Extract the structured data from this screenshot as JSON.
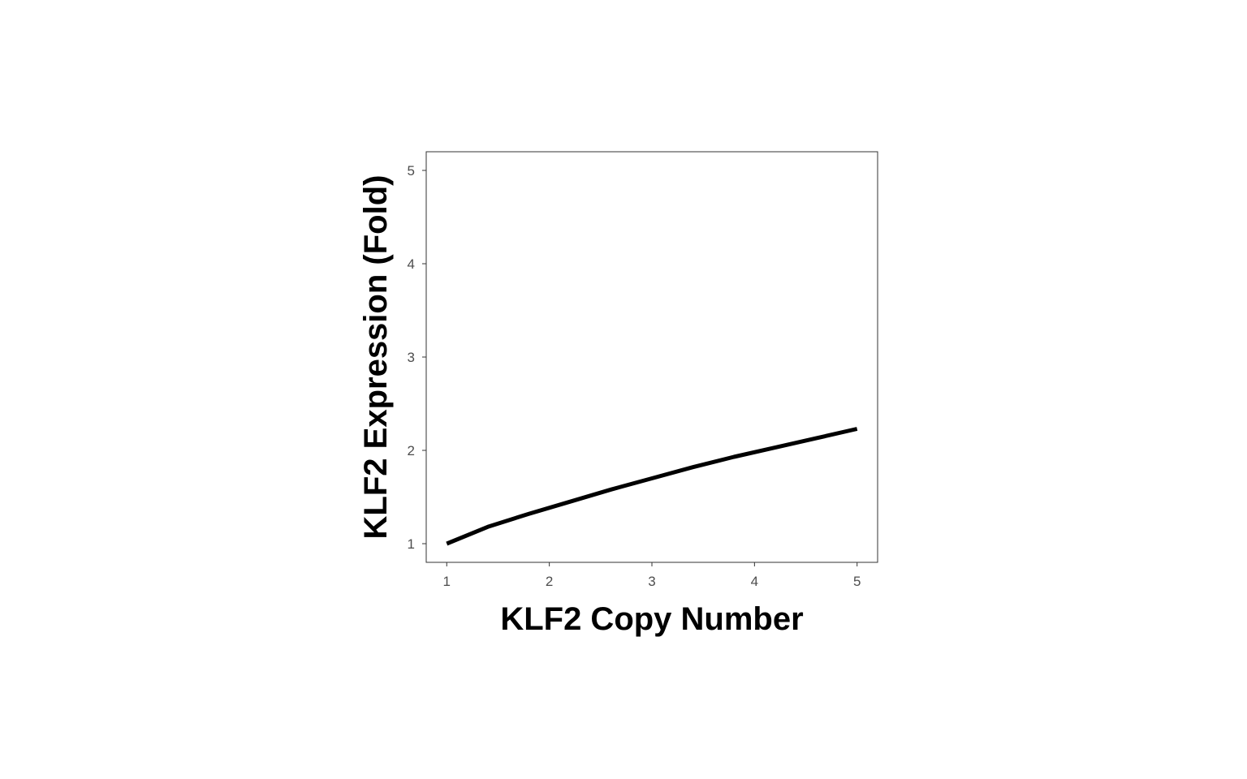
{
  "chart_data": {
    "type": "line",
    "title": "",
    "xlabel": "KLF2 Copy Number",
    "ylabel": "KLF2 Expression (Fold)",
    "xlim": [
      0.8,
      5.2
    ],
    "ylim": [
      0.8,
      5.2
    ],
    "x_ticks": [
      "1",
      "2",
      "3",
      "4",
      "5"
    ],
    "y_ticks": [
      "1",
      "2",
      "3",
      "4",
      "5"
    ],
    "grid": false,
    "legend": "none",
    "series": [
      {
        "color": "#000000",
        "x": [
          1.0,
          1.4,
          1.8,
          2.2,
          2.6,
          3.0,
          3.4,
          3.8,
          4.2,
          4.6,
          5.0
        ],
        "y": [
          1.0,
          1.18,
          1.32,
          1.45,
          1.58,
          1.7,
          1.82,
          1.93,
          2.03,
          2.13,
          2.23
        ]
      }
    ]
  }
}
